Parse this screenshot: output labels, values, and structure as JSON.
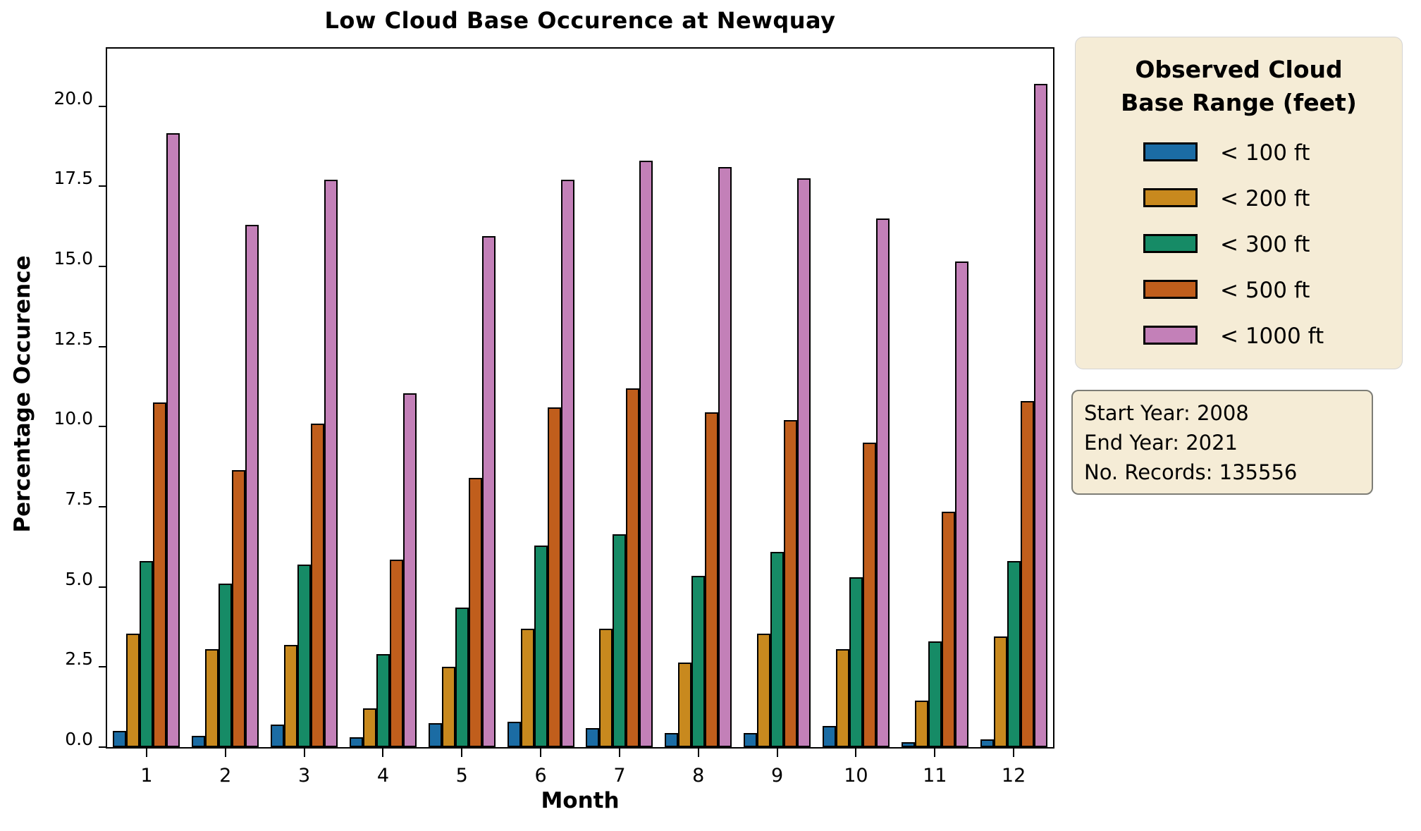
{
  "title": "Low Cloud Base Occurence at Newquay",
  "chart_data": {
    "type": "bar",
    "title": "Low Cloud Base Occurence at Newquay",
    "xlabel": "Month",
    "ylabel": "Percentage Occurence",
    "categories": [
      "1",
      "2",
      "3",
      "4",
      "5",
      "6",
      "7",
      "8",
      "9",
      "10",
      "11",
      "12"
    ],
    "series": [
      {
        "name": "< 100 ft",
        "color": "#1B6CA4",
        "values": [
          0.5,
          0.35,
          0.7,
          0.3,
          0.75,
          0.8,
          0.6,
          0.45,
          0.45,
          0.65,
          0.15,
          0.25
        ]
      },
      {
        "name": "< 200 ft",
        "color": "#C8891E",
        "values": [
          3.55,
          3.05,
          3.2,
          1.2,
          2.5,
          3.7,
          3.7,
          2.65,
          3.55,
          3.05,
          1.45,
          3.45
        ]
      },
      {
        "name": "< 300 ft",
        "color": "#168B66",
        "values": [
          5.8,
          5.1,
          5.7,
          2.9,
          4.35,
          6.3,
          6.65,
          5.35,
          6.1,
          5.3,
          3.3,
          5.8
        ]
      },
      {
        "name": "< 500 ft",
        "color": "#C05E1C",
        "values": [
          10.75,
          8.65,
          10.1,
          5.85,
          8.4,
          10.6,
          11.2,
          10.45,
          10.2,
          9.5,
          7.35,
          10.8
        ]
      },
      {
        "name": "< 1000 ft",
        "color": "#C380B8",
        "values": [
          19.15,
          16.3,
          17.7,
          11.05,
          15.95,
          17.7,
          18.3,
          18.1,
          17.75,
          16.5,
          15.15,
          20.7
        ]
      }
    ],
    "ylim": [
      0,
      21.8
    ],
    "yticks": [
      0.0,
      2.5,
      5.0,
      7.5,
      10.0,
      12.5,
      15.0,
      17.5,
      20.0
    ],
    "ytick_format_decimals": 1,
    "grid": false,
    "bar_edge_color": "#000000",
    "legend_position": "outside upper right"
  },
  "legend": {
    "title_lines": [
      "Observed Cloud",
      "Base Range (feet)"
    ]
  },
  "info_box": {
    "lines": [
      "Start Year: 2008",
      "End Year: 2021",
      "No. Records: 135556"
    ]
  },
  "colors": {
    "panel_background": "#F5ECD6",
    "panel_border_legend": "#d4d4d4",
    "panel_border_info": "#7d7d76",
    "axis_color": "#000000"
  }
}
